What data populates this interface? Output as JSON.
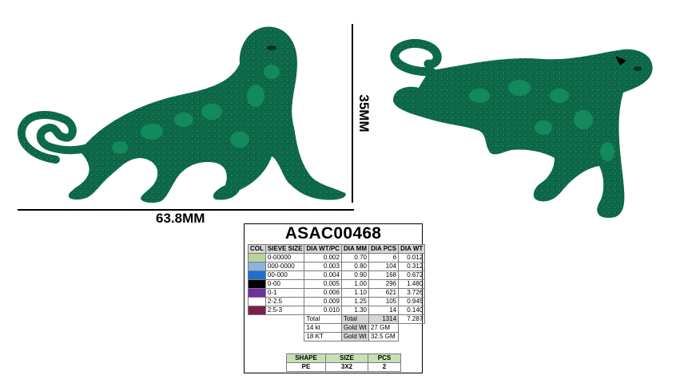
{
  "dimensions": {
    "length": "63.8MM",
    "height": "35MM"
  },
  "metal_color": "#0d6b4a",
  "product": {
    "code": "ASAC00468"
  },
  "stone_table": {
    "headers": [
      "COL",
      "SIEVE SIZE",
      "DIA WT/PC",
      "DIA MM",
      "DIA PCS",
      "DIA WT"
    ],
    "rows": [
      {
        "color": "#b7d59a",
        "sieve": "0-00000",
        "wt_pc": "0.002",
        "mm": "0.70",
        "pcs": "6",
        "wt": "0.012"
      },
      {
        "color": "#8db3e2",
        "sieve": "000-0000",
        "wt_pc": "0.003",
        "mm": "0.80",
        "pcs": "104",
        "wt": "0.312"
      },
      {
        "color": "#1f6fce",
        "sieve": "00-000",
        "wt_pc": "0.004",
        "mm": "0.90",
        "pcs": "168",
        "wt": "0.672"
      },
      {
        "color": "#000000",
        "sieve": "0-00",
        "wt_pc": "0.005",
        "mm": "1.00",
        "pcs": "296",
        "wt": "1.480"
      },
      {
        "color": "#7030a0",
        "sieve": "0-1",
        "wt_pc": "0.006",
        "mm": "1.10",
        "pcs": "621",
        "wt": "3.726"
      },
      {
        "color": "#ffffff",
        "sieve": "2-2.5",
        "wt_pc": "0.009",
        "mm": "1.25",
        "pcs": "105",
        "wt": "0.945"
      },
      {
        "color": "#7b1f4c",
        "sieve": "2.5-3",
        "wt_pc": "0.010",
        "mm": "1.30",
        "pcs": "14",
        "wt": "0.140"
      }
    ],
    "total_label_left": "Total",
    "total_label_right": "Total",
    "total_pcs": "1314",
    "total_wt": "7.287",
    "gold": [
      {
        "karat": "14 kt",
        "label": "Gold Wt",
        "value": "27 GM"
      },
      {
        "karat": "18 KT",
        "label": "Gold Wt",
        "value": "32.5 GM"
      }
    ]
  },
  "shape_table": {
    "headers": [
      "SHAPE",
      "SIZE",
      "PCS"
    ],
    "row": [
      "PE",
      "3X2",
      "2"
    ]
  }
}
